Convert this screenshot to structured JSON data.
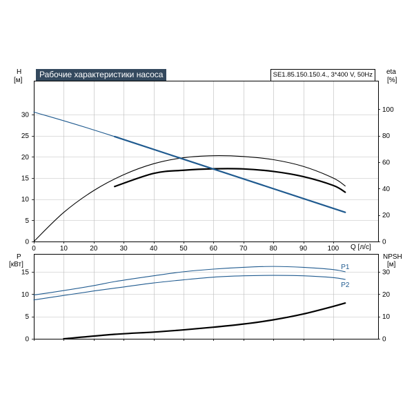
{
  "title": "Рабочие характеристики насоса",
  "model": "SE1.85.150.150.4., 3*400 V, 50Hz",
  "colors": {
    "blue": "#1f5a8f",
    "black": "#000000",
    "grid": "#bbbbbb"
  },
  "chart_data": [
    {
      "type": "line",
      "panel": "upper",
      "y_left_label": "H",
      "y_left_unit": "[м]",
      "y_right_label": "eta",
      "y_right_unit": "[%]",
      "x_label": "Q [л/с]",
      "x_ticks": [
        0,
        10,
        20,
        30,
        40,
        50,
        60,
        70,
        80,
        90,
        100
      ],
      "y_left_ticks": [
        0,
        5,
        10,
        15,
        20,
        25,
        30
      ],
      "y_right_ticks": [
        0,
        20,
        40,
        60,
        80,
        100
      ],
      "xlim": [
        0,
        115
      ],
      "ylim_left": [
        0,
        38
      ],
      "ylim_right": [
        0,
        121.6
      ],
      "grid": true,
      "series": [
        {
          "axis": "left",
          "color": "blue",
          "x": [
            0,
            27,
            104
          ],
          "y": [
            30.6,
            24.8,
            6.9
          ]
        },
        {
          "axis": "right",
          "color": "black",
          "x": [
            0,
            10,
            20,
            30,
            40,
            50,
            60,
            70,
            80,
            90,
            100,
            104
          ],
          "y": [
            0,
            22,
            38.5,
            50.5,
            58.8,
            63.4,
            64.9,
            64.3,
            61.9,
            56.8,
            48,
            42
          ]
        },
        {
          "axis": "right",
          "color": "black",
          "x": [
            27,
            40,
            50,
            60,
            70,
            80,
            90,
            100,
            104
          ],
          "y": [
            41.6,
            51.5,
            53.9,
            55,
            54.9,
            53,
            49.1,
            42.4,
            37.3
          ]
        }
      ]
    },
    {
      "type": "line",
      "panel": "lower",
      "y_left_label": "P",
      "y_left_unit": "[кВт]",
      "y_right_label": "NPSH",
      "y_right_unit": "[м]",
      "x_ticks": [
        0,
        10,
        20,
        30,
        40,
        50,
        60,
        70,
        80,
        90,
        100
      ],
      "y_left_ticks": [
        0,
        5,
        10,
        15
      ],
      "y_right_ticks": [
        0,
        10,
        20,
        30
      ],
      "xlim": [
        0,
        115
      ],
      "ylim_left": [
        0,
        19
      ],
      "ylim_right": [
        0,
        38
      ],
      "grid": true,
      "series": [
        {
          "name": "P1",
          "axis": "left",
          "color": "blue",
          "x": [
            0,
            10,
            20,
            27,
            40,
            50,
            60,
            70,
            80,
            90,
            100,
            104
          ],
          "y": [
            9.8,
            10.8,
            11.9,
            12.8,
            14.1,
            15,
            15.6,
            16,
            16.2,
            16,
            15.5,
            15
          ]
        },
        {
          "name": "P2",
          "axis": "left",
          "color": "blue",
          "x": [
            0,
            10,
            20,
            30,
            40,
            50,
            60,
            70,
            80,
            90,
            100,
            104
          ],
          "y": [
            8.7,
            9.7,
            10.7,
            11.6,
            12.5,
            13.2,
            13.8,
            14.1,
            14.2,
            14.1,
            13.7,
            13.3
          ]
        },
        {
          "axis": "right",
          "color": "black",
          "x": [
            10,
            27,
            40,
            50,
            60,
            70,
            80,
            90,
            100,
            104
          ],
          "y": [
            0,
            2,
            3,
            4,
            5.2,
            6.6,
            8.5,
            11.1,
            14.5,
            16
          ]
        }
      ]
    }
  ]
}
